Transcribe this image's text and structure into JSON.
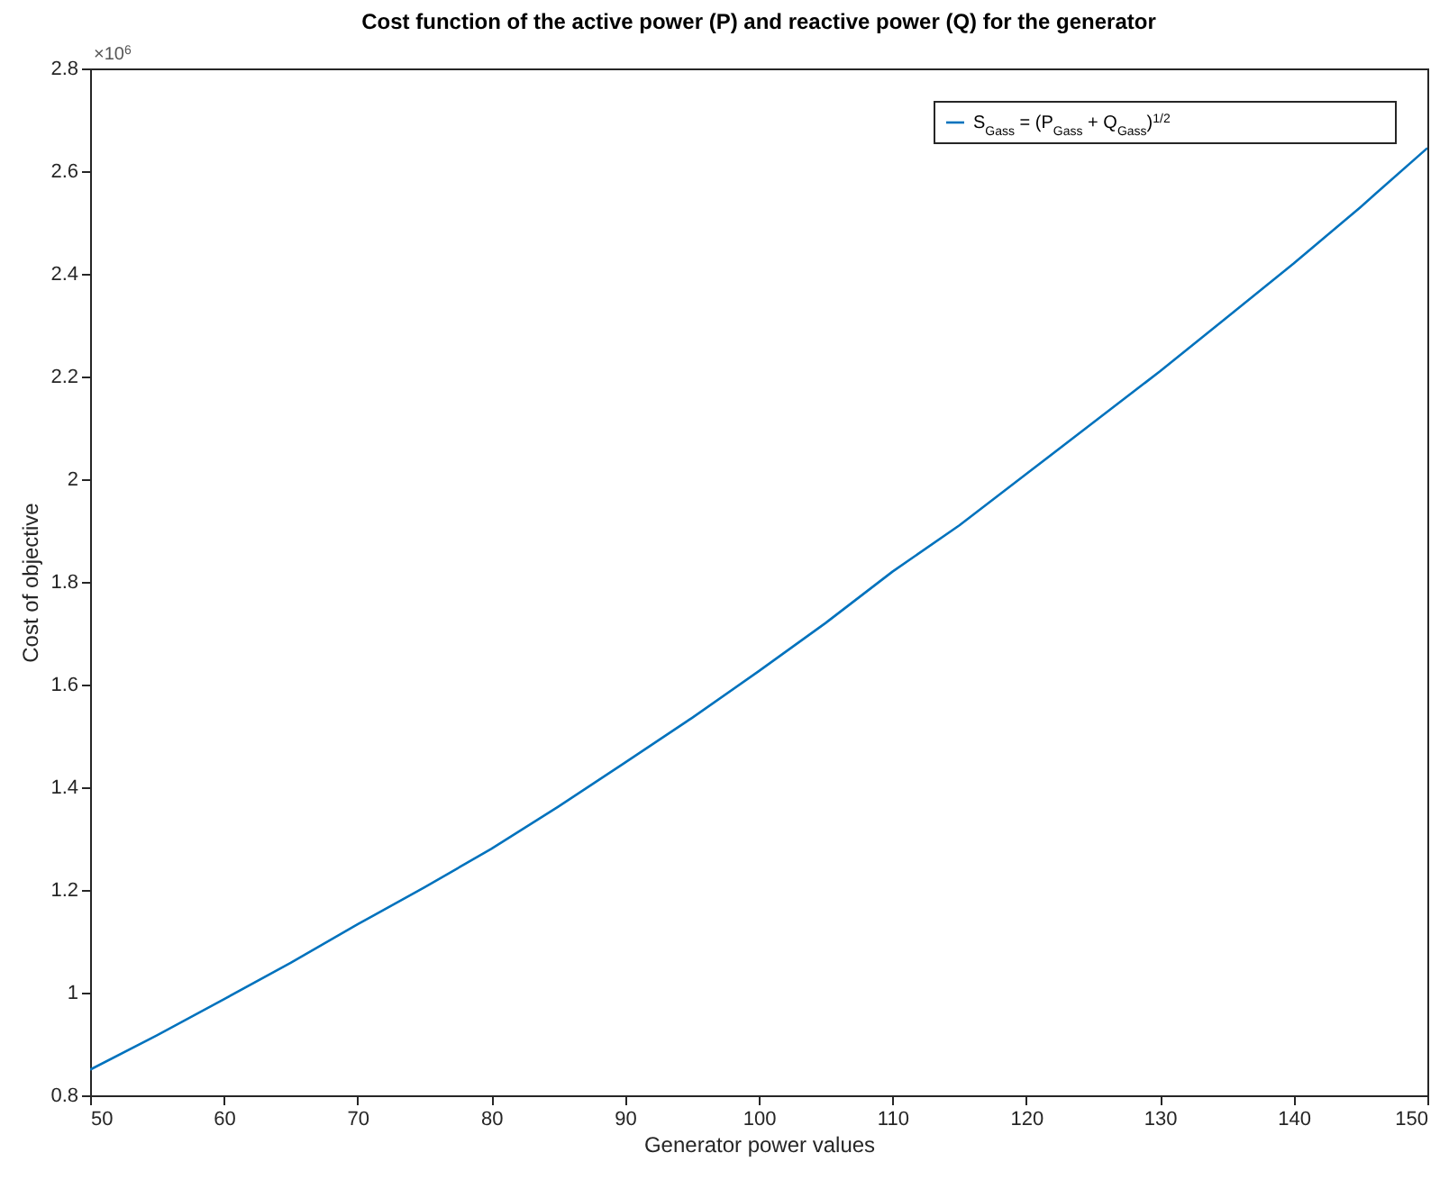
{
  "chart_data": {
    "type": "line",
    "title": "Cost function of the active power (P) and reactive power (Q) for the generator",
    "xlabel": "Generator power values",
    "ylabel": "Cost of objective",
    "annotations": [
      "×10$^{6}$"
    ],
    "x": [
      50,
      55,
      60,
      65,
      70,
      75,
      80,
      85,
      90,
      95,
      100,
      105,
      110,
      115,
      120,
      125,
      130,
      135,
      140,
      145,
      150
    ],
    "series": [
      {
        "name": "S$_{Gass}$ = (P$_{Gass}$ + Q$_{Gass}$)$^{1/2}$",
        "color": "#0072bd",
        "values": [
          0.85,
          0.917,
          0.987,
          1.058,
          1.133,
          1.205,
          1.28,
          1.362,
          1.448,
          1.535,
          1.626,
          1.72,
          1.82,
          1.91,
          2.01,
          2.11,
          2.21,
          2.315,
          2.42,
          2.53,
          2.645
        ]
      }
    ],
    "xlim": [
      50,
      150
    ],
    "xticks": [
      50,
      60,
      70,
      80,
      90,
      100,
      110,
      120,
      130,
      140,
      150
    ],
    "ylim": [
      0.8,
      2.8
    ],
    "yticks": [
      0.8,
      1,
      1.2,
      1.4,
      1.6,
      1.8,
      2,
      2.2,
      2.4,
      2.6,
      2.8
    ],
    "grid": false,
    "legend": "top right",
    "marker": "none",
    "line_style": null
  }
}
